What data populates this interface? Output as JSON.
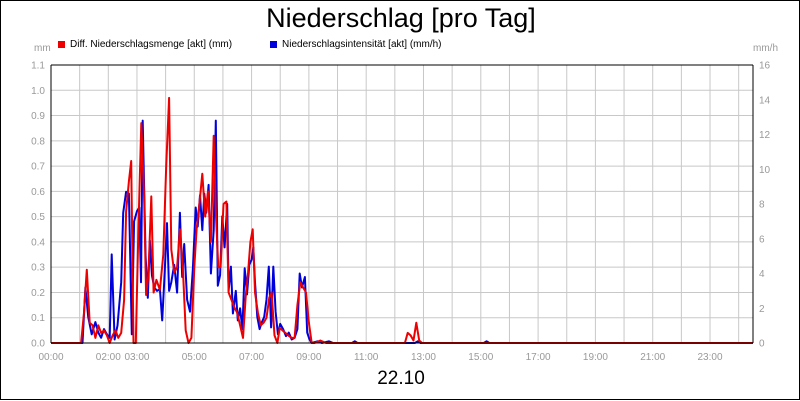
{
  "chart_data": {
    "type": "line",
    "title": "Niederschlag [pro Tag]",
    "date_label": "22.10",
    "y_left_unit": "mm",
    "y_right_unit": "mm/h",
    "ylim_left": [
      0,
      1.1
    ],
    "ylim_right": [
      0,
      16
    ],
    "xlim_hours": [
      0,
      24.5
    ],
    "grid": true,
    "legend_position": "top-left",
    "y_left_ticks": [
      "0.0",
      "0.1",
      "0.2",
      "0.3",
      "0.4",
      "0.5",
      "0.6",
      "0.7",
      "0.8",
      "0.9",
      "1.0",
      "1.1"
    ],
    "y_right_ticks": [
      "0",
      "2",
      "4",
      "6",
      "8",
      "10",
      "12",
      "14",
      "16"
    ],
    "x_tick_labels": [
      {
        "t": 0,
        "label": "00:00"
      },
      {
        "t": 2,
        "label": "02:00"
      },
      {
        "t": 3,
        "label": "03:00"
      },
      {
        "t": 5,
        "label": "05:00"
      },
      {
        "t": 7,
        "label": "07:00"
      },
      {
        "t": 9,
        "label": "09:00"
      },
      {
        "t": 11,
        "label": "11:00"
      },
      {
        "t": 13,
        "label": "13:00"
      },
      {
        "t": 15,
        "label": "15:00"
      },
      {
        "t": 17,
        "label": "17:00"
      },
      {
        "t": 19,
        "label": "19:00"
      },
      {
        "t": 21,
        "label": "21:00"
      },
      {
        "t": 23,
        "label": "23:00"
      }
    ],
    "series": [
      {
        "name": "Diff. Niederschlagsmenge [akt] (mm)",
        "axis": "left",
        "color": "#ee0000",
        "points": [
          [
            0,
            0
          ],
          [
            1.05,
            0
          ],
          [
            1.15,
            0.12
          ],
          [
            1.25,
            0.29
          ],
          [
            1.35,
            0.08
          ],
          [
            1.45,
            0.07
          ],
          [
            1.55,
            0.02
          ],
          [
            1.65,
            0.07
          ],
          [
            1.75,
            0.04
          ],
          [
            1.85,
            0.05
          ],
          [
            1.95,
            0.03
          ],
          [
            2.05,
            0.0
          ],
          [
            2.15,
            0.03
          ],
          [
            2.25,
            0.05
          ],
          [
            2.35,
            0.02
          ],
          [
            2.45,
            0.04
          ],
          [
            2.55,
            0.17
          ],
          [
            2.62,
            0.52
          ],
          [
            2.72,
            0.64
          ],
          [
            2.8,
            0.72
          ],
          [
            2.88,
            0.0
          ],
          [
            2.96,
            0.0
          ],
          [
            3.05,
            0.45
          ],
          [
            3.15,
            0.87
          ],
          [
            3.25,
            0.58
          ],
          [
            3.32,
            0.19
          ],
          [
            3.4,
            0.27
          ],
          [
            3.5,
            0.58
          ],
          [
            3.58,
            0.2
          ],
          [
            3.68,
            0.25
          ],
          [
            3.8,
            0.21
          ],
          [
            3.92,
            0.35
          ],
          [
            4.02,
            0.7
          ],
          [
            4.12,
            0.97
          ],
          [
            4.2,
            0.37
          ],
          [
            4.3,
            0.28
          ],
          [
            4.4,
            0.3
          ],
          [
            4.5,
            0.45
          ],
          [
            4.6,
            0.3
          ],
          [
            4.7,
            0.05
          ],
          [
            4.8,
            0.0
          ],
          [
            4.9,
            0.02
          ],
          [
            5.0,
            0.3
          ],
          [
            5.08,
            0.45
          ],
          [
            5.18,
            0.55
          ],
          [
            5.28,
            0.67
          ],
          [
            5.38,
            0.5
          ],
          [
            5.48,
            0.6
          ],
          [
            5.58,
            0.4
          ],
          [
            5.68,
            0.82
          ],
          [
            5.76,
            0.5
          ],
          [
            5.84,
            0.3
          ],
          [
            5.92,
            0.3
          ],
          [
            6.02,
            0.55
          ],
          [
            6.12,
            0.56
          ],
          [
            6.2,
            0.2
          ],
          [
            6.3,
            0.17
          ],
          [
            6.4,
            0.14
          ],
          [
            6.5,
            0.12
          ],
          [
            6.6,
            0.07
          ],
          [
            6.7,
            0.02
          ],
          [
            6.8,
            0.19
          ],
          [
            6.88,
            0.28
          ],
          [
            6.96,
            0.4
          ],
          [
            7.04,
            0.45
          ],
          [
            7.12,
            0.2
          ],
          [
            7.22,
            0.12
          ],
          [
            7.32,
            0.07
          ],
          [
            7.42,
            0.08
          ],
          [
            7.52,
            0.1
          ],
          [
            7.62,
            0.18
          ],
          [
            7.7,
            0.2
          ],
          [
            7.8,
            0.03
          ],
          [
            7.9,
            0.0
          ],
          [
            7.98,
            0.06
          ],
          [
            8.08,
            0.05
          ],
          [
            8.18,
            0.04
          ],
          [
            8.28,
            0.03
          ],
          [
            8.4,
            0.02
          ],
          [
            8.5,
            0.02
          ],
          [
            8.6,
            0.15
          ],
          [
            8.7,
            0.24
          ],
          [
            8.8,
            0.22
          ],
          [
            8.9,
            0.2
          ],
          [
            9.0,
            0.08
          ],
          [
            9.1,
            0.0
          ],
          [
            9.2,
            0.0
          ],
          [
            9.4,
            0.01
          ],
          [
            9.6,
            0.0
          ],
          [
            12.35,
            0.0
          ],
          [
            12.45,
            0.04
          ],
          [
            12.55,
            0.03
          ],
          [
            12.65,
            0.01
          ],
          [
            12.75,
            0.08
          ],
          [
            12.85,
            0.01
          ],
          [
            12.95,
            0.0
          ],
          [
            24.5,
            0.0
          ]
        ]
      },
      {
        "name": "Niederschlagsintensität [akt] (mm/h)",
        "axis": "right",
        "color": "#0000dd",
        "points": [
          [
            0,
            0
          ],
          [
            1.1,
            0
          ],
          [
            1.2,
            3.2
          ],
          [
            1.3,
            1.5
          ],
          [
            1.42,
            0.5
          ],
          [
            1.55,
            1.2
          ],
          [
            1.65,
            0.6
          ],
          [
            1.75,
            0.3
          ],
          [
            1.85,
            0.8
          ],
          [
            1.95,
            0.5
          ],
          [
            2.05,
            0.3
          ],
          [
            2.12,
            5.1
          ],
          [
            2.22,
            0.2
          ],
          [
            2.32,
            1.0
          ],
          [
            2.45,
            3.5
          ],
          [
            2.52,
            7.5
          ],
          [
            2.62,
            8.7
          ],
          [
            2.72,
            8.6
          ],
          [
            2.82,
            0.5
          ],
          [
            2.9,
            7.0
          ],
          [
            3.0,
            7.6
          ],
          [
            3.08,
            7.8
          ],
          [
            3.14,
            3.5
          ],
          [
            3.2,
            12.8
          ],
          [
            3.3,
            5.0
          ],
          [
            3.38,
            2.6
          ],
          [
            3.45,
            5.9
          ],
          [
            3.52,
            3.9
          ],
          [
            3.6,
            3.2
          ],
          [
            3.7,
            3.0
          ],
          [
            3.8,
            3.1
          ],
          [
            3.88,
            1.3
          ],
          [
            3.95,
            3.5
          ],
          [
            4.05,
            6.9
          ],
          [
            4.12,
            3.0
          ],
          [
            4.2,
            3.5
          ],
          [
            4.3,
            4.5
          ],
          [
            4.4,
            2.9
          ],
          [
            4.5,
            7.5
          ],
          [
            4.58,
            3.8
          ],
          [
            4.65,
            5.7
          ],
          [
            4.75,
            2.5
          ],
          [
            4.85,
            1.8
          ],
          [
            4.95,
            4.2
          ],
          [
            5.05,
            7.8
          ],
          [
            5.12,
            6.7
          ],
          [
            5.2,
            8.5
          ],
          [
            5.28,
            6.5
          ],
          [
            5.35,
            8.6
          ],
          [
            5.42,
            7.5
          ],
          [
            5.5,
            9.1
          ],
          [
            5.58,
            4.0
          ],
          [
            5.68,
            6.5
          ],
          [
            5.75,
            12.8
          ],
          [
            5.82,
            3.3
          ],
          [
            5.9,
            3.9
          ],
          [
            5.98,
            7.3
          ],
          [
            6.06,
            5.5
          ],
          [
            6.15,
            8.0
          ],
          [
            6.2,
            3.0
          ],
          [
            6.28,
            4.4
          ],
          [
            6.35,
            1.7
          ],
          [
            6.45,
            3.0
          ],
          [
            6.52,
            1.3
          ],
          [
            6.6,
            2.0
          ],
          [
            6.68,
            0.8
          ],
          [
            6.76,
            4.3
          ],
          [
            6.84,
            2.8
          ],
          [
            6.92,
            4.5
          ],
          [
            7.0,
            4.8
          ],
          [
            7.06,
            5.5
          ],
          [
            7.12,
            3.5
          ],
          [
            7.2,
            1.5
          ],
          [
            7.28,
            0.8
          ],
          [
            7.36,
            1.2
          ],
          [
            7.44,
            1.5
          ],
          [
            7.52,
            2.5
          ],
          [
            7.6,
            4.4
          ],
          [
            7.68,
            0.9
          ],
          [
            7.76,
            4.4
          ],
          [
            7.84,
            1.8
          ],
          [
            7.92,
            0.5
          ],
          [
            8.0,
            1.1
          ],
          [
            8.1,
            0.8
          ],
          [
            8.2,
            0.4
          ],
          [
            8.3,
            0.6
          ],
          [
            8.4,
            0.2
          ],
          [
            8.5,
            0.3
          ],
          [
            8.6,
            0.8
          ],
          [
            8.68,
            4.0
          ],
          [
            8.76,
            3.2
          ],
          [
            8.86,
            3.8
          ],
          [
            8.94,
            0.6
          ],
          [
            9.02,
            0.2
          ],
          [
            9.1,
            0.0
          ],
          [
            9.3,
            0.1
          ],
          [
            9.45,
            0.0
          ],
          [
            9.7,
            0.1
          ],
          [
            9.85,
            0.0
          ],
          [
            10.5,
            0.0
          ],
          [
            10.6,
            0.1
          ],
          [
            10.7,
            0.0
          ],
          [
            12.7,
            0.0
          ],
          [
            12.8,
            0.1
          ],
          [
            12.9,
            0.0
          ],
          [
            15.1,
            0.0
          ],
          [
            15.2,
            0.1
          ],
          [
            15.3,
            0.0
          ],
          [
            24.5,
            0.0
          ]
        ]
      }
    ]
  }
}
